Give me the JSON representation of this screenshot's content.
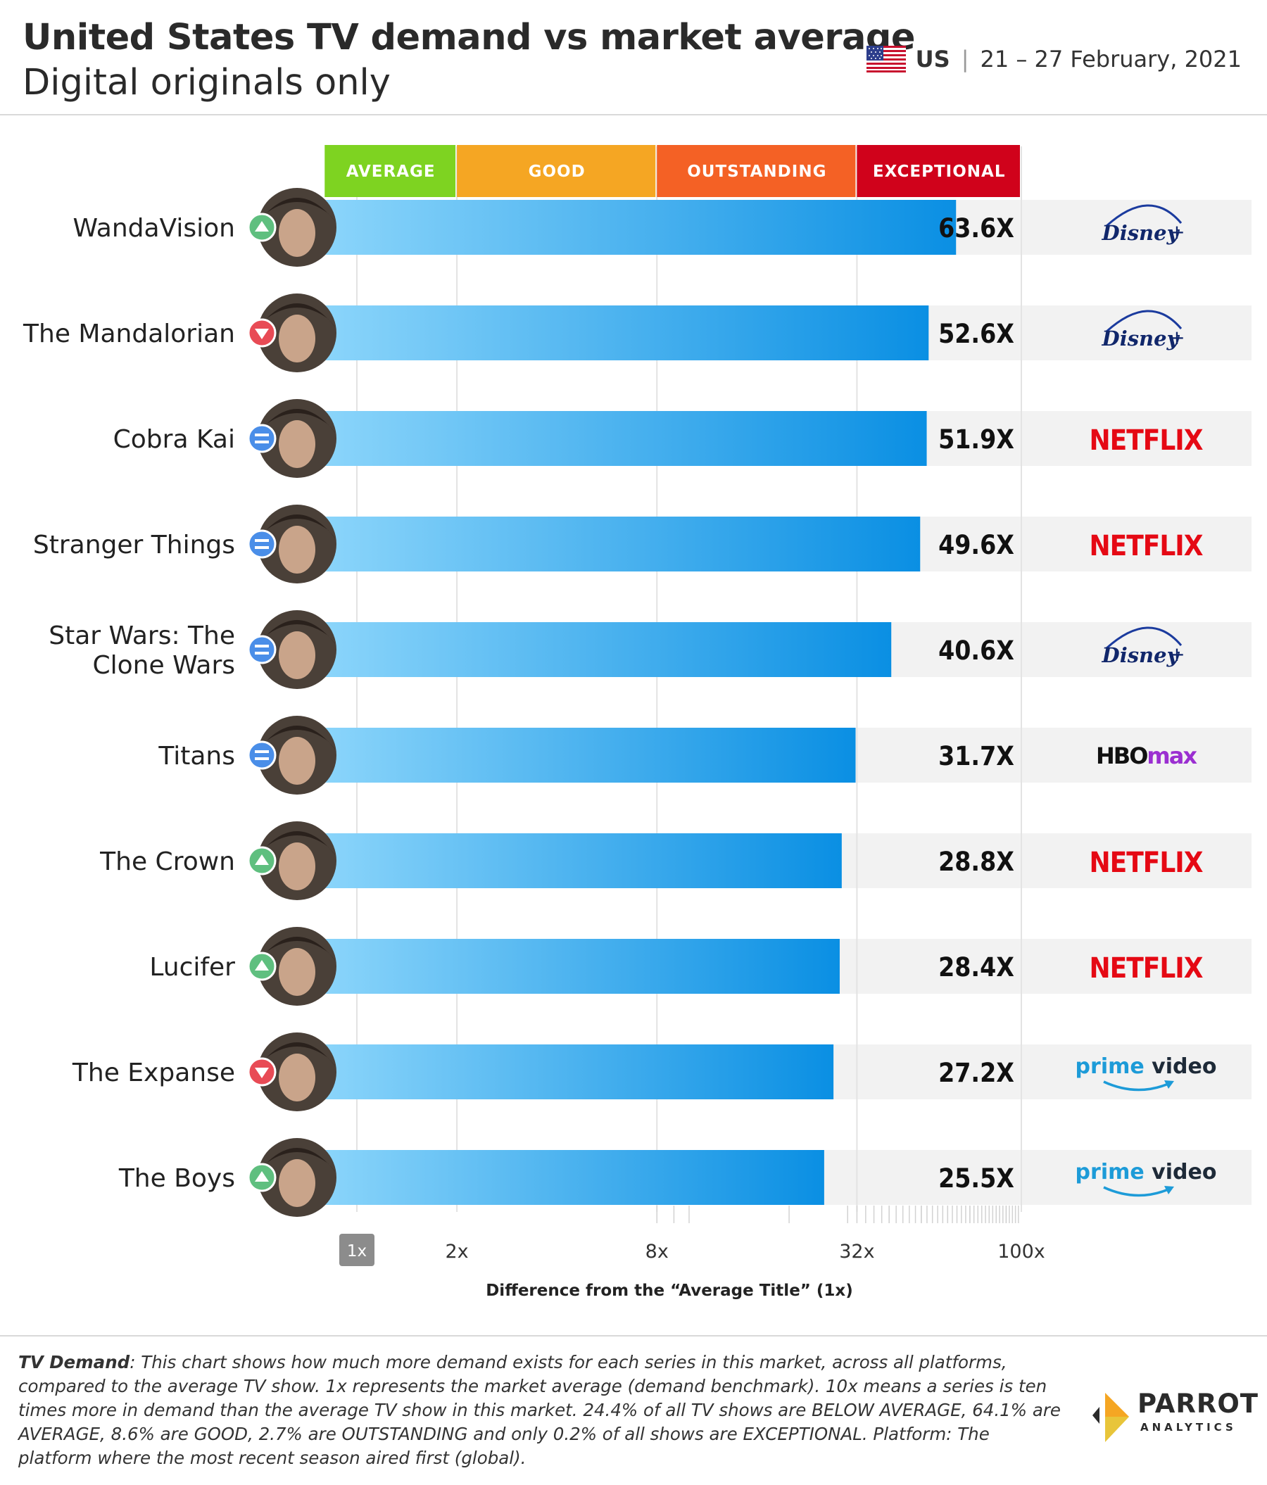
{
  "header": {
    "title": "United States TV demand vs market average",
    "subtitle": "Digital originals only",
    "country": "US",
    "date_range": "21 – 27 February, 2021"
  },
  "chart_data": {
    "type": "bar",
    "orientation": "horizontal",
    "x_scale": "log",
    "xlim": [
      1,
      100
    ],
    "xlabel": "Difference from the “Average Title” (1x)",
    "xticks": [
      "1x",
      "2x",
      "8x",
      "32x",
      "100x"
    ],
    "tick_values": [
      1,
      2,
      8,
      32,
      100
    ],
    "bands": [
      {
        "label": "AVERAGE",
        "from": 0.8,
        "to": 2,
        "color": "#7ed321"
      },
      {
        "label": "GOOD",
        "from": 2,
        "to": 8,
        "color": "#f5a623"
      },
      {
        "label": "OUTSTANDING",
        "from": 8,
        "to": 32,
        "color": "#f46125"
      },
      {
        "label": "EXCEPTIONAL",
        "from": 32,
        "to": 100,
        "color": "#d0021b"
      }
    ],
    "series": [
      {
        "values": [
          63.6,
          52.6,
          51.9,
          49.6,
          40.6,
          31.7,
          28.8,
          28.4,
          27.2,
          25.5
        ]
      }
    ],
    "categories": [
      "WandaVision",
      "The Mandalorian",
      "Cobra Kai",
      "Stranger Things",
      "Star Wars: The Clone Wars",
      "Titans",
      "The Crown",
      "Lucifer",
      "The Expanse",
      "The Boys"
    ],
    "rows": [
      {
        "title": "WandaVision",
        "lines": [
          "WandaVision"
        ],
        "value": 63.6,
        "label": "63.6X",
        "trend": "up",
        "platform": "disney"
      },
      {
        "title": "The Mandalorian",
        "lines": [
          "The Mandalorian"
        ],
        "value": 52.6,
        "label": "52.6X",
        "trend": "down",
        "platform": "disney"
      },
      {
        "title": "Cobra Kai",
        "lines": [
          "Cobra Kai"
        ],
        "value": 51.9,
        "label": "51.9X",
        "trend": "same",
        "platform": "netflix"
      },
      {
        "title": "Stranger Things",
        "lines": [
          "Stranger Things"
        ],
        "value": 49.6,
        "label": "49.6X",
        "trend": "same",
        "platform": "netflix"
      },
      {
        "title": "Star Wars: The Clone Wars",
        "lines": [
          "Star Wars: The",
          "Clone Wars"
        ],
        "value": 40.6,
        "label": "40.6X",
        "trend": "same",
        "platform": "disney"
      },
      {
        "title": "Titans",
        "lines": [
          "Titans"
        ],
        "value": 31.7,
        "label": "31.7X",
        "trend": "same",
        "platform": "hbomax"
      },
      {
        "title": "The Crown",
        "lines": [
          "The Crown"
        ],
        "value": 28.8,
        "label": "28.8X",
        "trend": "up",
        "platform": "netflix"
      },
      {
        "title": "Lucifer",
        "lines": [
          "Lucifer"
        ],
        "value": 28.4,
        "label": "28.4X",
        "trend": "up",
        "platform": "netflix"
      },
      {
        "title": "The Expanse",
        "lines": [
          "The Expanse"
        ],
        "value": 27.2,
        "label": "27.2X",
        "trend": "down",
        "platform": "prime"
      },
      {
        "title": "The Boys",
        "lines": [
          "The Boys"
        ],
        "value": 25.5,
        "label": "25.5X",
        "trend": "up",
        "platform": "prime"
      }
    ],
    "platform_labels": {
      "disney": {
        "main": "Disney",
        "plus": "+"
      },
      "netflix": {
        "main": "NETFLIX"
      },
      "hbomax": {
        "a": "HBO",
        "b": "max"
      },
      "prime": {
        "a": "prime",
        "b": "video"
      }
    },
    "trend_colors": {
      "up": "#5fbf7f",
      "down": "#e84b55",
      "same": "#4a8ee8"
    },
    "bar_gradient": [
      "#8dd6fb",
      "#0a8fe3"
    ],
    "grid": true
  },
  "footer": {
    "note_label": "TV Demand",
    "note_text": ": This chart shows how much more demand exists for each series in this market, across all platforms, compared to the average TV show. 1x represents the market average (demand benchmark). 10x means a series is ten times more in demand than the average TV show in this market. 24.4% of all TV shows are BELOW AVERAGE, 64.1% are AVERAGE, 8.6% are GOOD, 2.7% are OUTSTANDING and only 0.2% of all shows are EXCEPTIONAL. Platform: The platform where the most recent season aired first (global).",
    "brand_name": "PARROT",
    "brand_sub": "ANALYTICS",
    "brand_colors": [
      "#f5a623",
      "#e8c53a",
      "#2b2b2b"
    ]
  }
}
